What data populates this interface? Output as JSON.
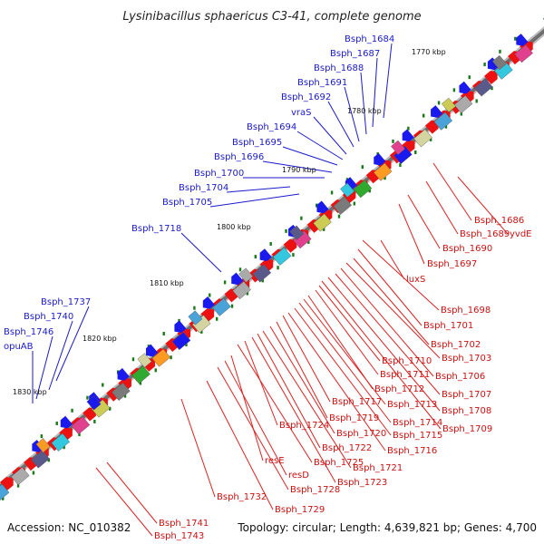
{
  "header": {
    "title": "Lysinibacillus sphaericus C3-41, complete genome"
  },
  "footer": {
    "accession": "Accession: NC_010382",
    "summary": "Topology: circular; Length: 4,639,821 bp; Genes: 4,700"
  },
  "colors": {
    "backbone": "#7a7a7a",
    "forward_strand_arrows": "#ee1111",
    "reverse_strand_arrows": "#1a1aee",
    "upper_labels": "#1a1acc",
    "lower_labels": "#cc1111",
    "ticks": "#1a7a1a"
  },
  "scale_labels": [
    "1770 kbp",
    "1780 kbp",
    "1790 kbp",
    "1800 kbp",
    "1810 kbp",
    "1820 kbp",
    "1830 kbp"
  ],
  "upper_gene_labels": [
    "Bsph_1684",
    "Bsph_1687",
    "Bsph_1688",
    "Bsph_1691",
    "Bsph_1692",
    "vraS",
    "Bsph_1694",
    "Bsph_1695",
    "Bsph_1696",
    "Bsph_1700",
    "Bsph_1704",
    "Bsph_1705",
    "Bsph_1718",
    "Bsph_1737",
    "Bsph_1740",
    "Bsph_1746",
    "opuAB"
  ],
  "lower_gene_labels": [
    "Bsph_1686",
    "Bsph_1689",
    "yvdE",
    "Bsph_1690",
    "Bsph_1697",
    "luxS",
    "Bsph_1698",
    "Bsph_1701",
    "Bsph_1702",
    "Bsph_1703",
    "Bsph_1706",
    "Bsph_1707",
    "Bsph_1708",
    "Bsph_1709",
    "Bsph_1710",
    "Bsph_1711",
    "Bsph_1712",
    "Bsph_1713",
    "Bsph_1714",
    "Bsph_1715",
    "Bsph_1716",
    "Bsph_1717",
    "Bsph_1719",
    "Bsph_1720",
    "Bsph_1721",
    "Bsph_1722",
    "Bsph_1723",
    "Bsph_1724",
    "Bsph_1725",
    "resE",
    "resD",
    "Bsph_1728",
    "Bsph_1729",
    "Bsph_1732",
    "Bsph_1741",
    "Bsph_1743"
  ]
}
